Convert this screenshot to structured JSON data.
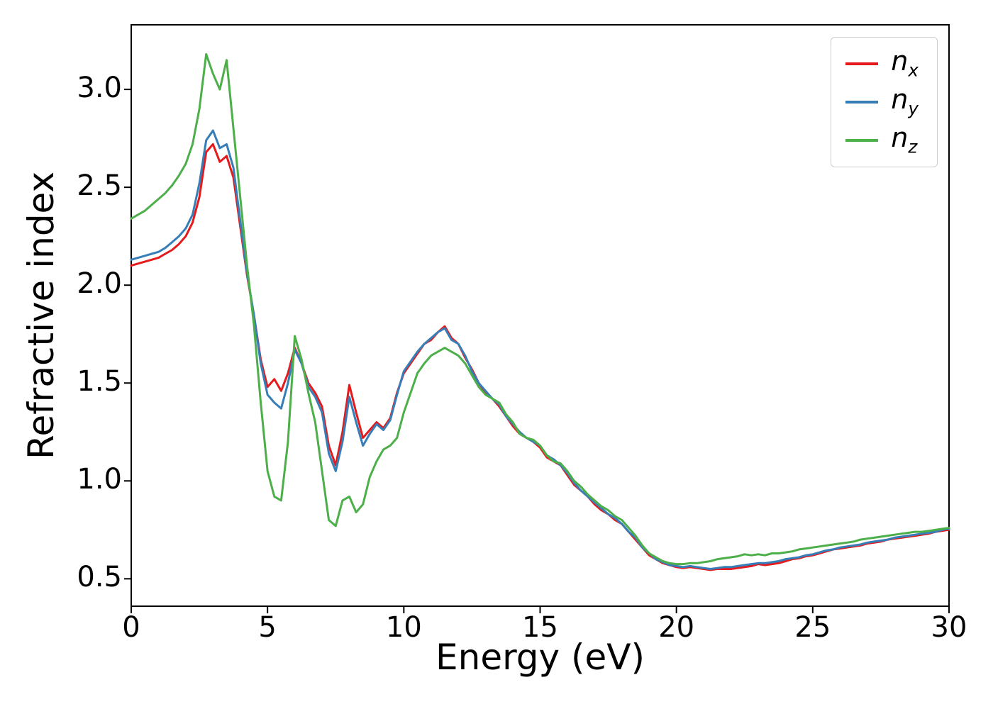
{
  "figure": {
    "background": "#ffffff",
    "axis_color": "#000000"
  },
  "chart_data": {
    "type": "line",
    "title": "",
    "xlabel": "Energy (eV)",
    "ylabel": "Refractive index",
    "xlim": [
      0,
      30
    ],
    "ylim": [
      0.36,
      3.33
    ],
    "xticks": [
      0,
      5,
      10,
      15,
      20,
      25,
      30
    ],
    "yticks": [
      0.5,
      1.0,
      1.5,
      2.0,
      2.5,
      3.0
    ],
    "grid": false,
    "legend_position": "upper right",
    "x": [
      0,
      0.25,
      0.5,
      0.75,
      1,
      1.25,
      1.5,
      1.75,
      2,
      2.25,
      2.5,
      2.75,
      3,
      3.25,
      3.5,
      3.75,
      4,
      4.25,
      4.5,
      4.75,
      5,
      5.25,
      5.5,
      5.75,
      6,
      6.25,
      6.5,
      6.75,
      7,
      7.25,
      7.5,
      7.75,
      8,
      8.25,
      8.5,
      8.75,
      9,
      9.25,
      9.5,
      9.75,
      10,
      10.25,
      10.5,
      10.75,
      11,
      11.25,
      11.5,
      11.75,
      12,
      12.25,
      12.5,
      12.75,
      13,
      13.25,
      13.5,
      13.75,
      14,
      14.25,
      14.5,
      14.75,
      15,
      15.25,
      15.5,
      15.75,
      16,
      16.25,
      16.5,
      16.75,
      17,
      17.25,
      17.5,
      17.75,
      18,
      18.25,
      18.5,
      18.75,
      19,
      19.25,
      19.5,
      19.75,
      20,
      20.25,
      20.5,
      20.75,
      21,
      21.25,
      21.5,
      21.75,
      22,
      22.25,
      22.5,
      22.75,
      23,
      23.25,
      23.5,
      23.75,
      24,
      24.25,
      24.5,
      24.75,
      25,
      25.25,
      25.5,
      25.75,
      26,
      26.25,
      26.5,
      26.75,
      27,
      27.25,
      27.5,
      27.75,
      28,
      28.25,
      28.5,
      28.75,
      29,
      29.25,
      29.5,
      29.75,
      30
    ],
    "series": [
      {
        "name": "n_x",
        "label_main": "n",
        "label_sub": "x",
        "color": "#e41a1c",
        "values": [
          2.1,
          2.11,
          2.12,
          2.13,
          2.14,
          2.16,
          2.18,
          2.21,
          2.25,
          2.32,
          2.45,
          2.68,
          2.72,
          2.63,
          2.66,
          2.55,
          2.3,
          2.05,
          1.85,
          1.62,
          1.48,
          1.52,
          1.46,
          1.55,
          1.68,
          1.6,
          1.5,
          1.45,
          1.38,
          1.18,
          1.08,
          1.25,
          1.49,
          1.35,
          1.22,
          1.26,
          1.3,
          1.27,
          1.32,
          1.45,
          1.55,
          1.6,
          1.65,
          1.7,
          1.72,
          1.76,
          1.79,
          1.73,
          1.7,
          1.63,
          1.57,
          1.5,
          1.45,
          1.42,
          1.38,
          1.33,
          1.28,
          1.24,
          1.22,
          1.2,
          1.17,
          1.12,
          1.1,
          1.08,
          1.03,
          0.98,
          0.95,
          0.92,
          0.88,
          0.85,
          0.83,
          0.8,
          0.78,
          0.74,
          0.7,
          0.66,
          0.62,
          0.6,
          0.58,
          0.57,
          0.56,
          0.555,
          0.56,
          0.555,
          0.55,
          0.545,
          0.55,
          0.55,
          0.55,
          0.555,
          0.56,
          0.565,
          0.575,
          0.57,
          0.575,
          0.58,
          0.59,
          0.6,
          0.605,
          0.615,
          0.62,
          0.63,
          0.64,
          0.65,
          0.655,
          0.66,
          0.665,
          0.67,
          0.68,
          0.685,
          0.69,
          0.7,
          0.705,
          0.71,
          0.715,
          0.72,
          0.725,
          0.73,
          0.74,
          0.745,
          0.75
        ]
      },
      {
        "name": "n_y",
        "label_main": "n",
        "label_sub": "y",
        "color": "#377eb8",
        "values": [
          2.13,
          2.14,
          2.15,
          2.16,
          2.17,
          2.19,
          2.22,
          2.25,
          2.29,
          2.36,
          2.52,
          2.74,
          2.79,
          2.7,
          2.72,
          2.6,
          2.33,
          2.06,
          1.85,
          1.6,
          1.44,
          1.4,
          1.37,
          1.5,
          1.67,
          1.6,
          1.48,
          1.43,
          1.35,
          1.14,
          1.05,
          1.2,
          1.43,
          1.3,
          1.18,
          1.24,
          1.29,
          1.26,
          1.31,
          1.44,
          1.56,
          1.61,
          1.66,
          1.7,
          1.73,
          1.76,
          1.78,
          1.72,
          1.7,
          1.64,
          1.56,
          1.5,
          1.46,
          1.42,
          1.39,
          1.33,
          1.29,
          1.25,
          1.22,
          1.2,
          1.18,
          1.13,
          1.11,
          1.08,
          1.04,
          0.99,
          0.95,
          0.92,
          0.89,
          0.86,
          0.83,
          0.81,
          0.78,
          0.74,
          0.71,
          0.66,
          0.63,
          0.6,
          0.585,
          0.57,
          0.565,
          0.56,
          0.565,
          0.56,
          0.555,
          0.55,
          0.555,
          0.56,
          0.56,
          0.565,
          0.57,
          0.575,
          0.58,
          0.58,
          0.585,
          0.59,
          0.6,
          0.605,
          0.61,
          0.62,
          0.625,
          0.635,
          0.645,
          0.65,
          0.66,
          0.665,
          0.67,
          0.675,
          0.685,
          0.69,
          0.695,
          0.7,
          0.71,
          0.715,
          0.72,
          0.725,
          0.73,
          0.735,
          0.74,
          0.75,
          0.755
        ]
      },
      {
        "name": "n_z",
        "label_main": "n",
        "label_sub": "z",
        "color": "#4daf4a",
        "values": [
          2.34,
          2.36,
          2.38,
          2.41,
          2.44,
          2.47,
          2.51,
          2.56,
          2.62,
          2.72,
          2.9,
          3.18,
          3.08,
          3.0,
          3.15,
          2.8,
          2.45,
          2.1,
          1.8,
          1.4,
          1.05,
          0.92,
          0.9,
          1.2,
          1.74,
          1.62,
          1.45,
          1.3,
          1.05,
          0.8,
          0.77,
          0.9,
          0.92,
          0.84,
          0.88,
          1.02,
          1.1,
          1.16,
          1.18,
          1.22,
          1.35,
          1.45,
          1.55,
          1.6,
          1.64,
          1.66,
          1.68,
          1.66,
          1.64,
          1.6,
          1.54,
          1.48,
          1.44,
          1.42,
          1.4,
          1.34,
          1.3,
          1.24,
          1.22,
          1.21,
          1.18,
          1.13,
          1.1,
          1.09,
          1.05,
          1.0,
          0.97,
          0.93,
          0.9,
          0.87,
          0.85,
          0.82,
          0.8,
          0.76,
          0.72,
          0.67,
          0.63,
          0.61,
          0.59,
          0.58,
          0.575,
          0.575,
          0.58,
          0.58,
          0.585,
          0.59,
          0.6,
          0.605,
          0.61,
          0.615,
          0.625,
          0.62,
          0.625,
          0.62,
          0.63,
          0.63,
          0.635,
          0.64,
          0.65,
          0.655,
          0.66,
          0.665,
          0.67,
          0.675,
          0.68,
          0.685,
          0.69,
          0.7,
          0.705,
          0.71,
          0.715,
          0.72,
          0.725,
          0.73,
          0.735,
          0.74,
          0.74,
          0.745,
          0.75,
          0.755,
          0.76
        ]
      }
    ]
  }
}
